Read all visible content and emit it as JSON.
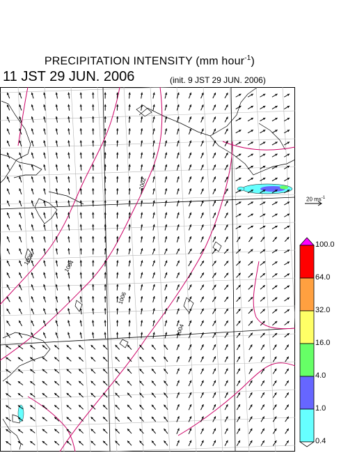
{
  "title": {
    "text": "PRECIPITATION INTENSITY (mm hour",
    "unit_exponent": "-1",
    "close": ")"
  },
  "valid_time": "11 JST 29 JUN. 2006",
  "init_time": "(init. 9 JST 29 JUN. 2006)",
  "isobar_labels": [
    "1002",
    "1004",
    "1006",
    "1008",
    "1004"
  ],
  "wind_scale": {
    "label": "20 ms",
    "exponent": "-1"
  },
  "colorbar": {
    "levels": [
      "100.0",
      "64.0",
      "32.0",
      "16.0",
      "4.0",
      "1.0",
      "0.4"
    ],
    "colors": [
      "#ff00ff",
      "#ff0000",
      "#ffa040",
      "#ffff66",
      "#66ff66",
      "#6666ff",
      "#66ffff",
      "#ffffff"
    ]
  },
  "colors": {
    "isobar": "#cc0066",
    "coast": "#000000",
    "grid": "#b4b4b4",
    "arrow": "#000000"
  }
}
